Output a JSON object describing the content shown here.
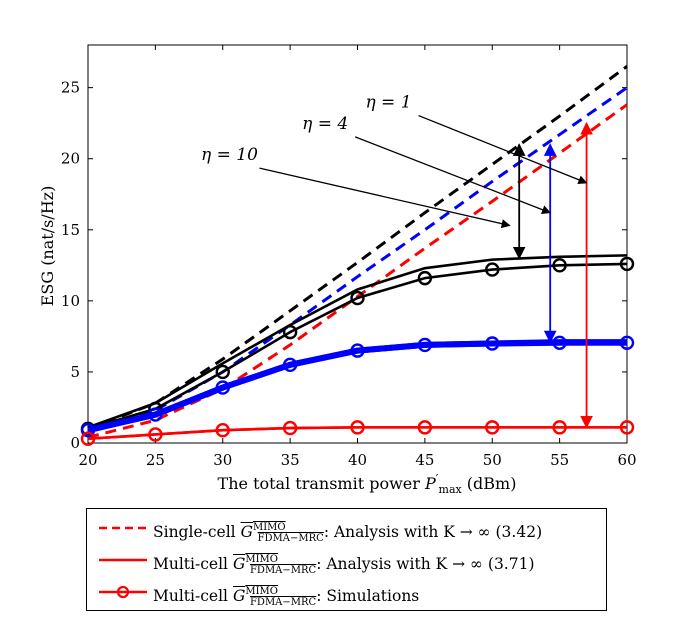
{
  "chart_data": {
    "type": "line",
    "xlabel": "The total transmit power P′max (dBm)",
    "ylabel": "ESG (nat/s/Hz)",
    "xlim": [
      20,
      60
    ],
    "ylim": [
      0,
      28
    ],
    "xticks": [
      20,
      25,
      30,
      35,
      40,
      45,
      50,
      55,
      60
    ],
    "yticks": [
      0,
      5,
      10,
      15,
      20,
      25
    ],
    "x": [
      20,
      25,
      30,
      35,
      40,
      45,
      50,
      55,
      60
    ],
    "series": [
      {
        "name": "Single-cell eta=10",
        "color": "#000000",
        "style": "dashed",
        "x": [
          20,
          25,
          30,
          35,
          40,
          45,
          50,
          55,
          60
        ],
        "values": [
          1.0,
          2.8,
          5.9,
          9.3,
          12.7,
          16.2,
          19.6,
          23.0,
          26.5
        ]
      },
      {
        "name": "Single-cell eta=4",
        "color": "#0000ff",
        "style": "dashed",
        "x": [
          20,
          25,
          30,
          35,
          40,
          45,
          50,
          55,
          60
        ],
        "values": [
          0.8,
          2.3,
          5.0,
          8.3,
          11.7,
          15.0,
          18.4,
          21.7,
          25.0
        ]
      },
      {
        "name": "Single-cell eta=1",
        "color": "#ff0000",
        "style": "dashed",
        "x": [
          20,
          25,
          30,
          35,
          40,
          45,
          50,
          55,
          60
        ],
        "values": [
          0.4,
          1.6,
          3.8,
          6.9,
          10.3,
          13.7,
          17.0,
          20.4,
          23.8
        ]
      },
      {
        "name": "Multi-cell analysis eta=10",
        "color": "#000000",
        "style": "solid",
        "x": [
          20,
          25,
          30,
          35,
          40,
          45,
          50,
          55,
          60
        ],
        "values": [
          1.1,
          2.8,
          5.6,
          8.3,
          10.8,
          12.3,
          12.9,
          13.1,
          13.2
        ]
      },
      {
        "name": "Multi-cell simulation eta=10",
        "color": "#000000",
        "style": "marker",
        "x": [
          20,
          25,
          30,
          35,
          40,
          45,
          50,
          55,
          60
        ],
        "values": [
          1.0,
          2.4,
          5.0,
          7.8,
          10.2,
          11.6,
          12.2,
          12.5,
          12.6
        ]
      },
      {
        "name": "Multi-cell analysis eta=4",
        "color": "#0000ff",
        "style": "solid",
        "x": [
          20,
          25,
          30,
          35,
          40,
          45,
          50,
          55,
          60
        ],
        "values": [
          0.9,
          2.0,
          3.9,
          5.5,
          6.5,
          6.9,
          7.0,
          7.1,
          7.1
        ]
      },
      {
        "name": "Multi-cell simulation eta=4",
        "color": "#0000ff",
        "style": "marker",
        "x": [
          20,
          25,
          30,
          35,
          40,
          45,
          50,
          55,
          60
        ],
        "values": [
          0.9,
          2.0,
          3.9,
          5.5,
          6.5,
          6.9,
          7.0,
          7.05,
          7.05
        ]
      },
      {
        "name": "Multi-cell analysis eta=1",
        "color": "#ff0000",
        "style": "solid",
        "x": [
          20,
          25,
          30,
          35,
          40,
          45,
          50,
          55,
          60
        ],
        "values": [
          0.3,
          0.6,
          0.9,
          1.05,
          1.1,
          1.1,
          1.1,
          1.1,
          1.1
        ]
      },
      {
        "name": "Multi-cell simulation eta=1",
        "color": "#ff0000",
        "style": "marker",
        "x": [
          20,
          25,
          30,
          35,
          40,
          45,
          50,
          55,
          60
        ],
        "values": [
          0.3,
          0.6,
          0.9,
          1.05,
          1.1,
          1.1,
          1.1,
          1.1,
          1.1
        ]
      }
    ],
    "gap_arrows": [
      {
        "color": "#000000",
        "x": 52,
        "y_from": 21.0,
        "y_to": 13.0
      },
      {
        "color": "#0000ff",
        "x": 54.3,
        "y_from": 21.0,
        "y_to": 7.1
      },
      {
        "color": "#ff0000",
        "x": 57.0,
        "y_from": 22.5,
        "y_to": 1.1
      }
    ],
    "annotations": [
      {
        "label": "η = 1",
        "text_x": 42.3,
        "text_y": 23.6,
        "to_x": 57.0,
        "to_y": 18.3
      },
      {
        "label": "η = 4",
        "text_x": 37.6,
        "text_y": 22.1,
        "to_x": 54.3,
        "to_y": 16.2
      },
      {
        "label": "η = 10",
        "text_x": 30.5,
        "text_y": 19.9,
        "to_x": 51.3,
        "to_y": 15.3
      }
    ]
  },
  "legend": {
    "entries": [
      {
        "prefix": "Single-cell",
        "sym": "G",
        "sup": "MIMO",
        "sub": "FDMA−MRC",
        "suffix": ": Analysis with K → ∞ (3.42)",
        "color": "#ff0000",
        "style": "dashed"
      },
      {
        "prefix": "Multi-cell",
        "sym": "G",
        "sup": "MIMO",
        "sub": "FDMA−MRC",
        "suffix": ": Analysis with K → ∞ (3.71)",
        "color": "#ff0000",
        "style": "solid"
      },
      {
        "prefix": "Multi-cell",
        "sym": "G",
        "sup": "MIMO",
        "sub": "FDMA−MRC",
        "suffix": ": Simulations",
        "color": "#ff0000",
        "style": "marker"
      }
    ]
  }
}
